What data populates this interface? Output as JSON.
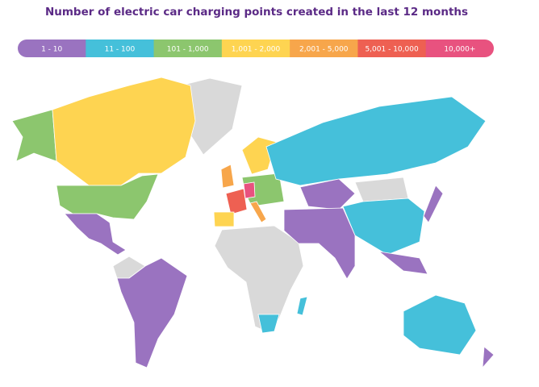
{
  "title": "Number of electric car charging points created in the last 12 months",
  "legend": [
    {
      "label": "1 - 10",
      "color": "#9a73c0"
    },
    {
      "label": "11 - 100",
      "color": "#45c0da"
    },
    {
      "label": "101 - 1,000",
      "color": "#8cc66e"
    },
    {
      "label": "1,001 - 2,000",
      "color": "#fed451"
    },
    {
      "label": "2,001 - 5,000",
      "color": "#f7a64b"
    },
    {
      "label": "5,001 - 10,000",
      "color": "#ee6052"
    },
    {
      "label": "10,000+",
      "color": "#e8527f"
    }
  ]
}
